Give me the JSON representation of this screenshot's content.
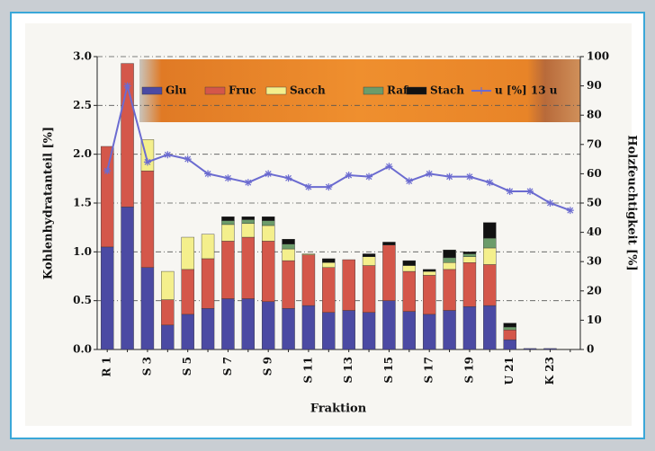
{
  "chart_data": {
    "type": "bar",
    "stacked": true,
    "x_label": "Fraktion",
    "y_label": "Kohlenhydratanteil [%]",
    "y2_label": "Holzfeuchtigkeit [%]",
    "categories": [
      "R 1",
      null,
      "S 3",
      null,
      "S 5",
      null,
      "S 7",
      null,
      "S 9",
      null,
      "S 11",
      null,
      "S 13",
      null,
      "S 15",
      null,
      "S 17",
      null,
      "S 19",
      null,
      "U 21",
      null,
      "K 23",
      null
    ],
    "series": [
      {
        "name": "Glu",
        "color": "#4b4aa3",
        "values": [
          1.05,
          1.46,
          0.84,
          0.25,
          0.36,
          0.42,
          0.52,
          0.52,
          0.49,
          0.42,
          0.45,
          0.38,
          0.4,
          0.38,
          0.5,
          0.39,
          0.36,
          0.4,
          0.44,
          0.45,
          0.1,
          0.01,
          0.01,
          0
        ]
      },
      {
        "name": "Fruc",
        "color": "#d4574a",
        "values": [
          1.03,
          1.47,
          0.99,
          0.26,
          0.46,
          0.51,
          0.59,
          0.63,
          0.62,
          0.49,
          0.52,
          0.46,
          0.52,
          0.48,
          0.57,
          0.41,
          0.4,
          0.42,
          0.45,
          0.42,
          0.1,
          0,
          0,
          0
        ]
      },
      {
        "name": "Sacch",
        "color": "#f4ef8c",
        "values": [
          0,
          0,
          0.32,
          0.29,
          0.33,
          0.25,
          0.17,
          0.14,
          0.16,
          0.12,
          0.01,
          0.05,
          0,
          0.09,
          0,
          0.06,
          0.04,
          0.07,
          0.06,
          0.17,
          0,
          0,
          0,
          0
        ]
      },
      {
        "name": "Raf",
        "color": "#6c9c6a",
        "values": [
          0,
          0,
          0,
          0,
          0,
          0,
          0.04,
          0.04,
          0.05,
          0.05,
          0,
          0,
          0,
          0,
          0,
          0,
          0,
          0.05,
          0.03,
          0.1,
          0.03,
          0,
          0,
          0
        ]
      },
      {
        "name": "Stach",
        "color": "#111111",
        "values": [
          0,
          0,
          0,
          0,
          0,
          0,
          0.04,
          0.03,
          0.04,
          0.05,
          0,
          0.04,
          0,
          0.03,
          0.03,
          0.05,
          0.02,
          0.08,
          0.02,
          0.16,
          0.04,
          0,
          0,
          0
        ]
      },
      {
        "name": "u [%] 13 u",
        "color": "#6b6bd0",
        "type": "line",
        "axis": "y2",
        "values": [
          61,
          90,
          64,
          66.5,
          65,
          60,
          58.5,
          57,
          60,
          58.5,
          55.5,
          55.5,
          59.5,
          59,
          62.5,
          57.5,
          60,
          59,
          59,
          57,
          54,
          54,
          50,
          47.5
        ]
      }
    ],
    "ylim": [
      0,
      3
    ],
    "yticks": [
      {
        "value": 0,
        "label": "0.0"
      },
      0.5,
      {
        "value": 1,
        "label": "1.0"
      },
      1.5,
      {
        "value": 2,
        "label": "2.0"
      },
      2.5,
      {
        "value": 3,
        "label": "3.0"
      }
    ],
    "y2lim": [
      0,
      100
    ],
    "y2ticks": [
      0,
      10,
      20,
      30,
      40,
      50,
      60,
      70,
      80,
      90,
      100
    ],
    "grid": true
  }
}
